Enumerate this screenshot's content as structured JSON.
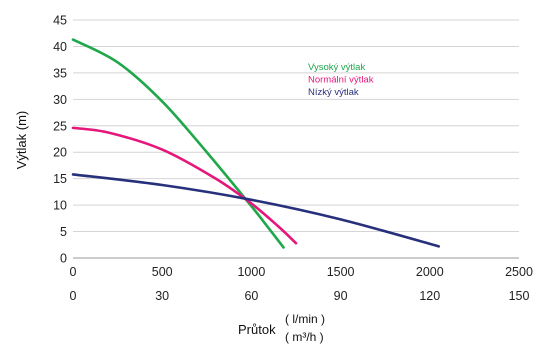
{
  "chart_data": {
    "type": "line",
    "ylabel": "Výtlak (m)",
    "xlabel": "Průtok",
    "xlabel_units": {
      "primary": "( l/min )",
      "secondary": "( m³/h )"
    },
    "xlim": [
      0,
      2500
    ],
    "ylim": [
      0,
      45
    ],
    "x_ticks": [
      0,
      500,
      1000,
      1500,
      2000,
      2500
    ],
    "x_ticks_secondary": [
      0,
      30,
      60,
      90,
      120,
      150
    ],
    "y_ticks": [
      0,
      5,
      10,
      15,
      20,
      25,
      30,
      35,
      40,
      45
    ],
    "grid": "horizontal",
    "legend_position": "center-right",
    "series": [
      {
        "name": "Vysoký výtlak",
        "color": "#1fa84a",
        "x": [
          0,
          250,
          500,
          750,
          1000,
          1100,
          1180
        ],
        "y": [
          41.3,
          37.0,
          29.6,
          20.0,
          9.8,
          5.5,
          2.0
        ]
      },
      {
        "name": "Normální výtlak",
        "color": "#e5177b",
        "x": [
          0,
          200,
          500,
          800,
          1000,
          1150,
          1250
        ],
        "y": [
          24.6,
          23.7,
          20.5,
          15.0,
          10.3,
          6.0,
          2.8
        ]
      },
      {
        "name": "Nízký výtlak",
        "color": "#27307a",
        "x": [
          0,
          500,
          1000,
          1500,
          2050
        ],
        "y": [
          15.8,
          13.8,
          11.0,
          7.3,
          2.2
        ]
      }
    ]
  }
}
